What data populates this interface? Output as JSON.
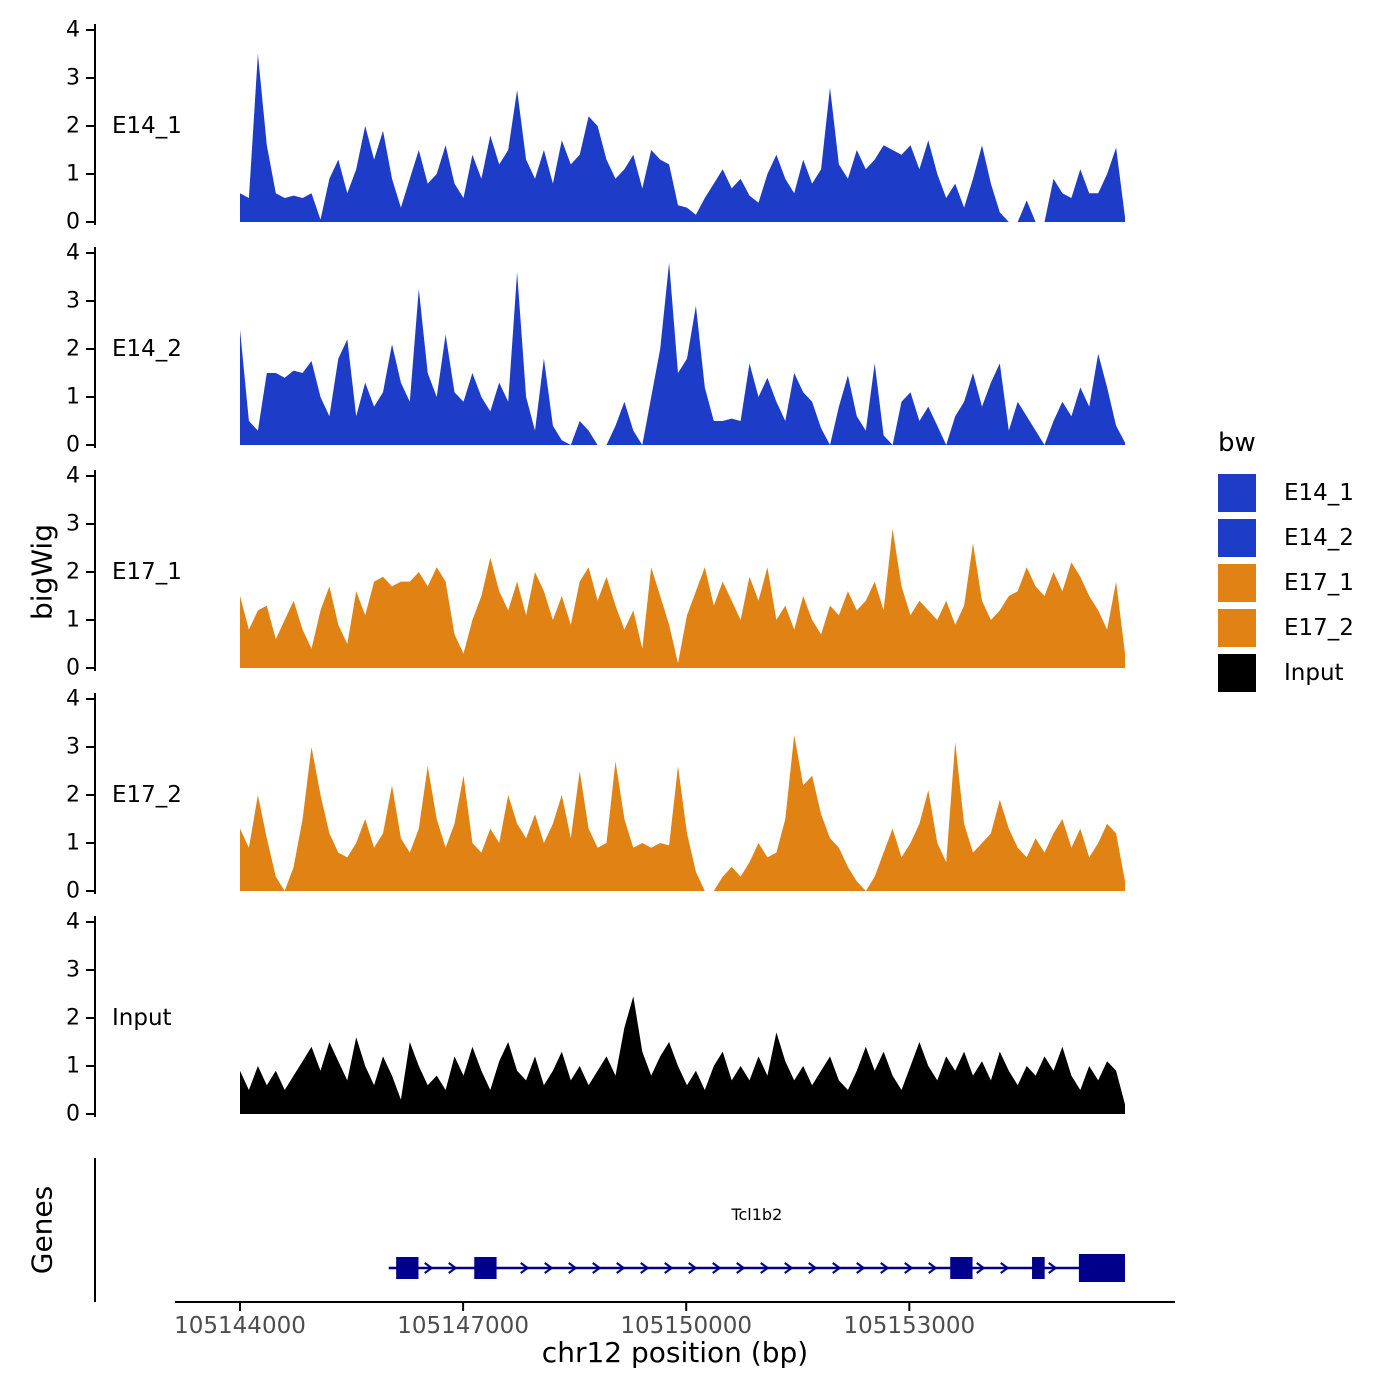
{
  "figure": {
    "ylabel": "bigWig",
    "genes_track_label": "Genes",
    "xlabel": "chr12 position (bp)",
    "legend_title": "bw"
  },
  "legend": {
    "title": "bw",
    "items": [
      {
        "label": "E14_1",
        "color": "#1d3cc8"
      },
      {
        "label": "E14_2",
        "color": "#1d3cc8"
      },
      {
        "label": "E17_1",
        "color": "#e08214"
      },
      {
        "label": "E17_2",
        "color": "#e08214"
      },
      {
        "label": "Input",
        "color": "#000000"
      }
    ]
  },
  "chart_data": {
    "type": "area",
    "title": "",
    "xlabel": "chr12 position (bp)",
    "ylabel": "bigWig",
    "x_range_bp": [
      105144000,
      105155900
    ],
    "x_ticks": [
      105144000,
      105147000,
      105150000,
      105153000
    ],
    "ylim": [
      0,
      4
    ],
    "y_ticks": [
      0,
      1,
      2,
      3,
      4
    ],
    "tracks": [
      {
        "name": "E14_1",
        "color": "#1d3cc8",
        "values": [
          0.6,
          0.5,
          3.5,
          1.6,
          0.6,
          0.5,
          0.55,
          0.5,
          0.6,
          0.05,
          0.9,
          1.3,
          0.6,
          1.1,
          2.0,
          1.3,
          1.9,
          0.9,
          0.3,
          0.9,
          1.5,
          0.8,
          1.0,
          1.6,
          0.8,
          0.5,
          1.4,
          0.9,
          1.8,
          1.2,
          1.5,
          2.75,
          1.3,
          0.9,
          1.5,
          0.8,
          1.7,
          1.2,
          1.4,
          2.2,
          2.0,
          1.3,
          0.9,
          1.1,
          1.4,
          0.7,
          1.5,
          1.3,
          1.2,
          0.35,
          0.3,
          0.15,
          0.5,
          0.8,
          1.1,
          0.7,
          0.9,
          0.55,
          0.4,
          1.0,
          1.4,
          0.9,
          0.6,
          1.3,
          0.8,
          1.1,
          2.8,
          1.2,
          0.9,
          1.5,
          1.1,
          1.3,
          1.6,
          1.5,
          1.4,
          1.6,
          1.1,
          1.7,
          1.0,
          0.5,
          0.8,
          0.3,
          0.9,
          1.6,
          0.8,
          0.2,
          0.0,
          0.0,
          0.45,
          0.0,
          0.0,
          0.9,
          0.6,
          0.5,
          1.1,
          0.6,
          0.6,
          1.0,
          1.55,
          0.1
        ]
      },
      {
        "name": "E14_2",
        "color": "#1d3cc8",
        "values": [
          2.4,
          0.5,
          0.3,
          1.5,
          1.5,
          1.4,
          1.55,
          1.5,
          1.75,
          1.0,
          0.6,
          1.8,
          2.2,
          0.6,
          1.3,
          0.8,
          1.1,
          2.1,
          1.3,
          0.9,
          3.25,
          1.5,
          1.0,
          2.3,
          1.1,
          0.9,
          1.5,
          1.0,
          0.7,
          1.3,
          0.9,
          3.6,
          1.0,
          0.3,
          1.8,
          0.4,
          0.1,
          0.0,
          0.5,
          0.3,
          0.0,
          0.0,
          0.4,
          0.9,
          0.3,
          0.0,
          1.0,
          2.0,
          3.8,
          1.5,
          1.8,
          2.9,
          1.2,
          0.5,
          0.5,
          0.55,
          0.5,
          1.7,
          1.0,
          1.4,
          0.9,
          0.5,
          1.5,
          1.1,
          0.9,
          0.35,
          0.0,
          0.8,
          1.45,
          0.6,
          0.3,
          1.7,
          0.2,
          0.0,
          0.9,
          1.1,
          0.5,
          0.8,
          0.4,
          0.0,
          0.6,
          0.9,
          1.5,
          0.8,
          1.3,
          1.7,
          0.3,
          0.9,
          0.6,
          0.3,
          0.0,
          0.5,
          0.9,
          0.6,
          1.2,
          0.8,
          1.9,
          1.2,
          0.4,
          0.05
        ]
      },
      {
        "name": "E17_1",
        "color": "#e08214",
        "values": [
          1.5,
          0.8,
          1.2,
          1.3,
          0.6,
          1.0,
          1.4,
          0.8,
          0.4,
          1.2,
          1.7,
          0.9,
          0.5,
          1.6,
          1.1,
          1.8,
          1.9,
          1.7,
          1.8,
          1.8,
          2.0,
          1.7,
          2.1,
          1.8,
          0.7,
          0.3,
          1.0,
          1.5,
          2.3,
          1.6,
          1.2,
          1.8,
          1.1,
          2.0,
          1.6,
          1.0,
          1.5,
          0.9,
          1.8,
          2.1,
          1.4,
          1.9,
          1.3,
          0.8,
          1.2,
          0.4,
          2.1,
          1.5,
          0.9,
          0.1,
          1.1,
          1.6,
          2.1,
          1.3,
          1.8,
          1.4,
          1.0,
          1.9,
          1.4,
          2.1,
          1.0,
          1.3,
          0.8,
          1.5,
          1.0,
          0.7,
          1.3,
          1.1,
          1.6,
          1.2,
          1.4,
          1.8,
          1.2,
          2.9,
          1.7,
          1.1,
          1.4,
          1.2,
          1.0,
          1.4,
          0.9,
          1.3,
          2.6,
          1.4,
          1.0,
          1.2,
          1.5,
          1.6,
          2.1,
          1.7,
          1.5,
          2.0,
          1.6,
          2.2,
          1.9,
          1.5,
          1.2,
          0.8,
          1.8,
          0.3
        ]
      },
      {
        "name": "E17_2",
        "color": "#e08214",
        "values": [
          1.3,
          0.9,
          2.0,
          1.1,
          0.3,
          0.0,
          0.5,
          1.5,
          3.0,
          2.0,
          1.2,
          0.8,
          0.7,
          1.0,
          1.5,
          0.9,
          1.2,
          2.2,
          1.1,
          0.8,
          1.3,
          2.6,
          1.5,
          0.9,
          1.4,
          2.4,
          1.0,
          0.8,
          1.3,
          1.0,
          2.0,
          1.4,
          1.1,
          1.6,
          1.0,
          1.4,
          2.0,
          1.1,
          2.5,
          1.3,
          0.9,
          1.0,
          2.7,
          1.5,
          0.9,
          1.0,
          0.9,
          1.0,
          0.95,
          2.6,
          1.2,
          0.4,
          0.0,
          0.0,
          0.3,
          0.5,
          0.3,
          0.6,
          1.0,
          0.7,
          0.8,
          1.5,
          3.25,
          2.2,
          2.4,
          1.6,
          1.1,
          0.9,
          0.5,
          0.2,
          0.0,
          0.3,
          0.8,
          1.3,
          0.7,
          1.0,
          1.4,
          2.1,
          1.0,
          0.6,
          3.1,
          1.4,
          0.8,
          1.0,
          1.2,
          1.9,
          1.3,
          0.9,
          0.7,
          1.1,
          0.8,
          1.2,
          1.5,
          0.9,
          1.3,
          0.7,
          1.0,
          1.4,
          1.2,
          0.2
        ]
      },
      {
        "name": "Input",
        "color": "#000000",
        "values": [
          0.9,
          0.5,
          1.0,
          0.6,
          0.9,
          0.5,
          0.8,
          1.1,
          1.4,
          0.9,
          1.5,
          1.1,
          0.7,
          1.6,
          1.0,
          0.6,
          1.2,
          0.8,
          0.3,
          1.5,
          1.0,
          0.6,
          0.8,
          0.5,
          1.2,
          0.8,
          1.4,
          0.9,
          0.5,
          1.1,
          1.5,
          0.9,
          0.7,
          1.2,
          0.6,
          0.9,
          1.3,
          0.7,
          1.0,
          0.6,
          0.9,
          1.2,
          0.8,
          1.8,
          2.45,
          1.3,
          0.8,
          1.2,
          1.5,
          1.0,
          0.6,
          0.9,
          0.5,
          1.0,
          1.3,
          0.7,
          1.0,
          0.7,
          1.2,
          0.8,
          1.7,
          1.1,
          0.7,
          1.0,
          0.6,
          0.9,
          1.2,
          0.7,
          0.5,
          0.9,
          1.4,
          0.9,
          1.3,
          0.8,
          0.5,
          1.0,
          1.5,
          1.0,
          0.7,
          1.2,
          0.9,
          1.3,
          0.8,
          1.1,
          0.7,
          1.3,
          0.9,
          0.6,
          1.0,
          0.8,
          1.2,
          0.9,
          1.4,
          0.8,
          0.5,
          1.0,
          0.7,
          1.1,
          0.9,
          0.2
        ]
      }
    ],
    "gene_track": {
      "axis_label": "Genes",
      "gene": {
        "name": "Tcl1b2",
        "color": "#00008b",
        "strand": "+",
        "start_bp": 105146000,
        "end_bp": 105155900,
        "exons_bp": [
          [
            105146100,
            105146400
          ],
          [
            105147150,
            105147450
          ],
          [
            105153550,
            105153850
          ],
          [
            105154650,
            105154820
          ],
          [
            105155280,
            105155900
          ]
        ]
      }
    }
  }
}
